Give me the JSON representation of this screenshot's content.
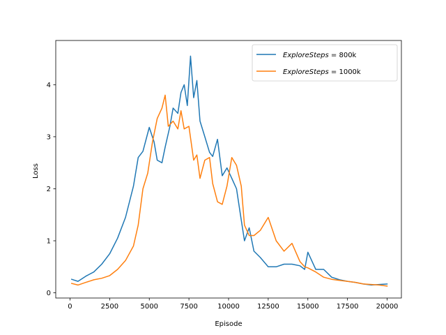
{
  "chart_data": {
    "type": "line",
    "title": "",
    "xlabel": "Episode",
    "ylabel": "Loss",
    "xlim": [
      -900,
      20900
    ],
    "ylim": [
      -0.1,
      4.85
    ],
    "xticks": [
      0,
      2500,
      5000,
      7500,
      10000,
      12500,
      15000,
      17500,
      20000
    ],
    "xtick_labels": [
      "0",
      "2500",
      "5000",
      "7500",
      "10000",
      "12500",
      "15000",
      "17500",
      "20000"
    ],
    "yticks": [
      0,
      1,
      2,
      3,
      4
    ],
    "ytick_labels": [
      "0",
      "1",
      "2",
      "3",
      "4"
    ],
    "grid": false,
    "legend_position": "top-right",
    "series": [
      {
        "name_italic": "ExploreSteps",
        "name_suffix": " = 800k",
        "color": "#1f77b4",
        "x": [
          100,
          500,
          1000,
          1500,
          2000,
          2500,
          3000,
          3500,
          4000,
          4300,
          4600,
          5000,
          5300,
          5500,
          5800,
          6000,
          6300,
          6500,
          6800,
          7000,
          7200,
          7400,
          7600,
          7800,
          8000,
          8200,
          8500,
          8800,
          9000,
          9300,
          9600,
          9900,
          10200,
          10500,
          10800,
          11000,
          11300,
          11600,
          12000,
          12500,
          13000,
          13500,
          14000,
          14500,
          14800,
          15000,
          15500,
          16000,
          16500,
          17000,
          17500,
          18000,
          18500,
          19000,
          19500,
          20000
        ],
        "values": [
          0.26,
          0.22,
          0.32,
          0.4,
          0.55,
          0.75,
          1.05,
          1.45,
          2.05,
          2.6,
          2.72,
          3.18,
          2.9,
          2.55,
          2.5,
          2.8,
          3.2,
          3.55,
          3.45,
          3.85,
          4.0,
          3.6,
          4.55,
          3.75,
          4.08,
          3.3,
          3.0,
          2.7,
          2.62,
          2.95,
          2.25,
          2.4,
          2.2,
          2.0,
          1.4,
          1.0,
          1.25,
          0.8,
          0.68,
          0.5,
          0.5,
          0.55,
          0.55,
          0.52,
          0.45,
          0.78,
          0.45,
          0.45,
          0.3,
          0.25,
          0.22,
          0.2,
          0.17,
          0.15,
          0.16,
          0.17
        ]
      },
      {
        "name_italic": "ExploreSteps",
        "name_suffix": " = 1000k",
        "color": "#ff7f0e",
        "x": [
          100,
          500,
          1000,
          1500,
          2000,
          2500,
          3000,
          3500,
          4000,
          4300,
          4600,
          4900,
          5200,
          5500,
          5800,
          6000,
          6200,
          6500,
          6800,
          7000,
          7200,
          7500,
          7800,
          8000,
          8200,
          8500,
          8800,
          9000,
          9300,
          9600,
          9900,
          10200,
          10500,
          10800,
          11000,
          11300,
          11600,
          12000,
          12500,
          13000,
          13500,
          14000,
          14500,
          14800,
          15000,
          15500,
          16000,
          16500,
          17000,
          17500,
          18000,
          18500,
          19000,
          19500,
          20000
        ],
        "values": [
          0.18,
          0.15,
          0.2,
          0.25,
          0.28,
          0.33,
          0.45,
          0.62,
          0.9,
          1.3,
          2.0,
          2.3,
          2.9,
          3.35,
          3.55,
          3.8,
          3.2,
          3.3,
          3.15,
          3.5,
          3.15,
          3.2,
          2.55,
          2.65,
          2.2,
          2.55,
          2.6,
          2.1,
          1.75,
          1.7,
          2.05,
          2.6,
          2.45,
          2.05,
          1.3,
          1.1,
          1.1,
          1.2,
          1.45,
          1.0,
          0.8,
          0.95,
          0.6,
          0.5,
          0.48,
          0.4,
          0.3,
          0.26,
          0.24,
          0.22,
          0.2,
          0.17,
          0.16,
          0.15,
          0.13
        ]
      }
    ]
  }
}
